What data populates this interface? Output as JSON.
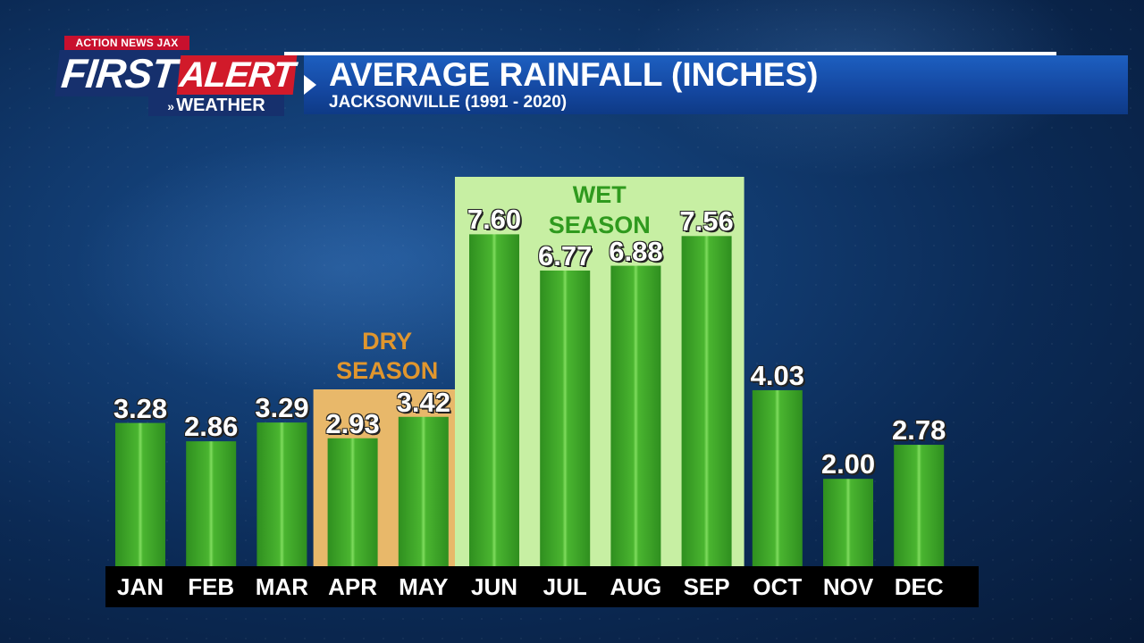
{
  "header": {
    "brand_top": "ACTION NEWS JAX",
    "brand_first": "FIRST",
    "brand_alert": "ALERT",
    "brand_weather": "WEATHER",
    "title": "AVERAGE RAINFALL (INCHES)",
    "subtitle": "JACKSONVILLE (1991 - 2020)"
  },
  "chart_data": {
    "type": "bar",
    "title": "AVERAGE RAINFALL (INCHES)",
    "subtitle": "JACKSONVILLE (1991 - 2020)",
    "categories": [
      "JAN",
      "FEB",
      "MAR",
      "APR",
      "MAY",
      "JUN",
      "JUL",
      "AUG",
      "SEP",
      "OCT",
      "NOV",
      "DEC"
    ],
    "values": [
      3.28,
      2.86,
      3.29,
      2.93,
      3.42,
      7.6,
      6.77,
      6.88,
      7.56,
      4.03,
      2.0,
      2.78
    ],
    "value_labels": [
      "3.28",
      "2.86",
      "3.29",
      "2.93",
      "3.42",
      "7.60",
      "6.77",
      "6.88",
      "7.56",
      "4.03",
      "2.00",
      "2.78"
    ],
    "xlabel": "",
    "ylabel": "",
    "ylim": [
      0,
      8.5
    ],
    "grid": false,
    "bar_color": "#3fa62a",
    "seasons": [
      {
        "name_line1": "DRY",
        "name_line2": "SEASON",
        "start": "APR",
        "end": "MAY",
        "fill": "#e8b86a",
        "text_color": "#e0962e"
      },
      {
        "name_line1": "WET",
        "name_line2": "SEASON",
        "start": "JUN",
        "end": "SEP",
        "fill": "#c7efa3",
        "text_color": "#2f9a1e"
      }
    ]
  }
}
